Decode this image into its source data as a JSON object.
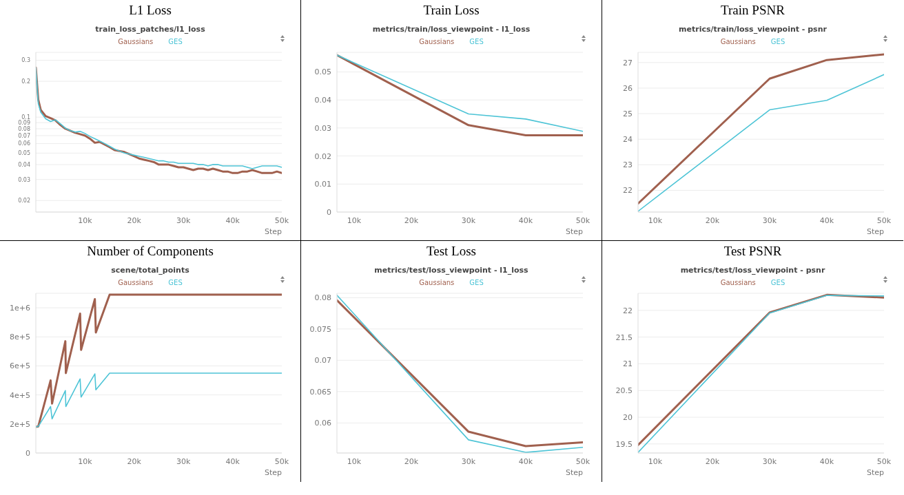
{
  "chart_data": [
    {
      "type": "line",
      "title": "L1 Loss",
      "subtitle": "train_loss_patches/l1_loss",
      "xlabel": "Step",
      "log": true,
      "grid": "y",
      "legend": "top",
      "xlim": [
        0,
        50000
      ],
      "xticks": [
        {
          "value": 10000,
          "label": "10k"
        },
        {
          "value": 20000,
          "label": "20k"
        },
        {
          "value": 30000,
          "label": "30k"
        },
        {
          "value": 40000,
          "label": "40k"
        },
        {
          "value": 50000,
          "label": "50k"
        }
      ],
      "ylim": [
        0.016,
        0.35
      ],
      "yticks": [
        0.02,
        0.03,
        0.04,
        0.05,
        0.06,
        0.07,
        0.08,
        0.09,
        0.1,
        0.2,
        0.3
      ],
      "series": [
        {
          "name": "Gaussians",
          "color": "#a0604e",
          "x": [
            0,
            500,
            1000,
            2000,
            3000,
            4000,
            5000,
            6000,
            7000,
            8000,
            9000,
            10000,
            11000,
            12000,
            13000,
            14000,
            15000,
            16000,
            17000,
            18000,
            19000,
            20000,
            21000,
            22000,
            23000,
            24000,
            25000,
            26000,
            27000,
            28000,
            29000,
            30000,
            31000,
            32000,
            33000,
            34000,
            35000,
            36000,
            37000,
            38000,
            39000,
            40000,
            41000,
            42000,
            43000,
            44000,
            45000,
            46000,
            47000,
            48000,
            49000,
            50000
          ],
          "values": [
            0.26,
            0.14,
            0.115,
            0.102,
            0.098,
            0.094,
            0.086,
            0.08,
            0.077,
            0.074,
            0.072,
            0.07,
            0.066,
            0.061,
            0.062,
            0.059,
            0.056,
            0.053,
            0.052,
            0.051,
            0.049,
            0.047,
            0.045,
            0.044,
            0.043,
            0.042,
            0.04,
            0.04,
            0.04,
            0.039,
            0.038,
            0.038,
            0.037,
            0.036,
            0.037,
            0.037,
            0.036,
            0.037,
            0.036,
            0.035,
            0.035,
            0.034,
            0.034,
            0.035,
            0.035,
            0.036,
            0.035,
            0.034,
            0.034,
            0.034,
            0.035,
            0.034
          ]
        },
        {
          "name": "GES",
          "color": "#4dc4d6",
          "x": [
            0,
            500,
            1000,
            2000,
            3000,
            4000,
            5000,
            6000,
            7000,
            8000,
            9000,
            10000,
            11000,
            12000,
            13000,
            14000,
            15000,
            16000,
            17000,
            18000,
            19000,
            20000,
            21000,
            22000,
            23000,
            24000,
            25000,
            26000,
            27000,
            28000,
            29000,
            30000,
            31000,
            32000,
            33000,
            34000,
            35000,
            36000,
            37000,
            38000,
            39000,
            40000,
            41000,
            42000,
            43000,
            44000,
            45000,
            46000,
            47000,
            48000,
            49000,
            50000
          ],
          "values": [
            0.26,
            0.13,
            0.11,
            0.097,
            0.092,
            0.095,
            0.088,
            0.081,
            0.077,
            0.075,
            0.076,
            0.073,
            0.069,
            0.066,
            0.063,
            0.06,
            0.057,
            0.054,
            0.052,
            0.05,
            0.049,
            0.048,
            0.047,
            0.046,
            0.045,
            0.044,
            0.043,
            0.043,
            0.042,
            0.042,
            0.041,
            0.041,
            0.041,
            0.041,
            0.04,
            0.04,
            0.039,
            0.04,
            0.04,
            0.039,
            0.039,
            0.039,
            0.039,
            0.039,
            0.038,
            0.037,
            0.038,
            0.039,
            0.039,
            0.039,
            0.039,
            0.038
          ]
        }
      ]
    },
    {
      "type": "line",
      "title": "Train Loss",
      "subtitle": "metrics/train/loss_viewpoint - l1_loss",
      "xlabel": "Step",
      "grid": "y",
      "legend": "top",
      "xlim": [
        7000,
        50000
      ],
      "xticks": [
        {
          "value": 10000,
          "label": "10k"
        },
        {
          "value": 20000,
          "label": "20k"
        },
        {
          "value": 30000,
          "label": "30k"
        },
        {
          "value": 40000,
          "label": "40k"
        },
        {
          "value": 50000,
          "label": "50k"
        }
      ],
      "ylim": [
        0,
        0.057
      ],
      "yticks": [
        0,
        0.01,
        0.02,
        0.03,
        0.04,
        0.05
      ],
      "series": [
        {
          "name": "Gaussians",
          "color": "#a0604e",
          "x": [
            7000,
            30000,
            40000,
            50000
          ],
          "values": [
            0.056,
            0.031,
            0.0274,
            0.0274
          ]
        },
        {
          "name": "GES",
          "color": "#4dc4d6",
          "x": [
            7000,
            30000,
            40000,
            50000
          ],
          "values": [
            0.056,
            0.035,
            0.0332,
            0.0288
          ]
        }
      ]
    },
    {
      "type": "line",
      "title": "Train PSNR",
      "subtitle": "metrics/train/loss_viewpoint - psnr",
      "xlabel": "Step",
      "grid": "y",
      "legend": "top",
      "xlim": [
        7000,
        50000
      ],
      "xticks": [
        {
          "value": 10000,
          "label": "10k"
        },
        {
          "value": 20000,
          "label": "20k"
        },
        {
          "value": 30000,
          "label": "30k"
        },
        {
          "value": 40000,
          "label": "40k"
        },
        {
          "value": 50000,
          "label": "50k"
        }
      ],
      "ylim": [
        21.15,
        27.4
      ],
      "yticks": [
        22,
        23,
        24,
        25,
        26,
        27
      ],
      "series": [
        {
          "name": "Gaussians",
          "color": "#a0604e",
          "x": [
            7000,
            30000,
            40000,
            50000
          ],
          "values": [
            21.48,
            26.37,
            27.1,
            27.32
          ]
        },
        {
          "name": "GES",
          "color": "#4dc4d6",
          "x": [
            7000,
            30000,
            40000,
            50000
          ],
          "values": [
            21.18,
            25.15,
            25.52,
            26.53
          ]
        }
      ]
    },
    {
      "type": "line",
      "title": "Number of Components",
      "subtitle": "scene/total_points",
      "xlabel": "Step",
      "grid": "y",
      "legend": "top",
      "xlim": [
        0,
        50000
      ],
      "xticks": [
        {
          "value": 10000,
          "label": "10k"
        },
        {
          "value": 20000,
          "label": "20k"
        },
        {
          "value": 30000,
          "label": "30k"
        },
        {
          "value": 40000,
          "label": "40k"
        },
        {
          "value": 50000,
          "label": "50k"
        }
      ],
      "ylim": [
        0,
        1100000
      ],
      "yticks": [
        0,
        {
          "value": 200000,
          "label": "2e+5"
        },
        {
          "value": 400000,
          "label": "4e+5"
        },
        {
          "value": 600000,
          "label": "6e+5"
        },
        {
          "value": 800000,
          "label": "8e+5"
        },
        {
          "value": 1000000,
          "label": "1e+6"
        }
      ],
      "series": [
        {
          "name": "Gaussians",
          "color": "#a0604e",
          "x": [
            0,
            500,
            3000,
            3300,
            6000,
            6100,
            9000,
            9200,
            12000,
            12200,
            15000,
            50000
          ],
          "values": [
            180000,
            183000,
            500000,
            340000,
            770000,
            550000,
            960000,
            710000,
            1060000,
            830000,
            1090000,
            1090000
          ]
        },
        {
          "name": "GES",
          "color": "#4dc4d6",
          "x": [
            0,
            500,
            3000,
            3300,
            6000,
            6100,
            9000,
            9200,
            12000,
            12200,
            15000,
            50000
          ],
          "values": [
            180000,
            183000,
            320000,
            235000,
            430000,
            320000,
            510000,
            385000,
            545000,
            435000,
            550000,
            550000
          ]
        }
      ]
    },
    {
      "type": "line",
      "title": "Test Loss",
      "subtitle": "metrics/test/loss_viewpoint - l1_loss",
      "xlabel": "Step",
      "grid": "y",
      "legend": "top",
      "xlim": [
        7000,
        50000
      ],
      "xticks": [
        {
          "value": 10000,
          "label": "10k"
        },
        {
          "value": 20000,
          "label": "20k"
        },
        {
          "value": 30000,
          "label": "30k"
        },
        {
          "value": 40000,
          "label": "40k"
        },
        {
          "value": 50000,
          "label": "50k"
        }
      ],
      "ylim": [
        0.0552,
        0.0807
      ],
      "yticks": [
        0.06,
        0.065,
        0.07,
        0.075,
        0.08
      ],
      "series": [
        {
          "name": "Gaussians",
          "color": "#a0604e",
          "x": [
            7000,
            30000,
            40000,
            50000
          ],
          "values": [
            0.0796,
            0.0586,
            0.0563,
            0.0569
          ]
        },
        {
          "name": "GES",
          "color": "#4dc4d6",
          "x": [
            7000,
            30000,
            40000,
            50000
          ],
          "values": [
            0.0804,
            0.0573,
            0.0553,
            0.0561
          ]
        }
      ]
    },
    {
      "type": "line",
      "title": "Test PSNR",
      "subtitle": "metrics/test/loss_viewpoint - psnr",
      "xlabel": "Step",
      "grid": "y",
      "legend": "top",
      "xlim": [
        7000,
        50000
      ],
      "xticks": [
        {
          "value": 10000,
          "label": "10k"
        },
        {
          "value": 20000,
          "label": "20k"
        },
        {
          "value": 30000,
          "label": "30k"
        },
        {
          "value": 40000,
          "label": "40k"
        },
        {
          "value": 50000,
          "label": "50k"
        }
      ],
      "ylim": [
        19.33,
        22.32
      ],
      "yticks": [
        19.5,
        20,
        20.5,
        21,
        21.5,
        22
      ],
      "series": [
        {
          "name": "Gaussians",
          "color": "#a0604e",
          "x": [
            7000,
            30000,
            40000,
            50000
          ],
          "values": [
            19.48,
            21.96,
            22.29,
            22.24
          ]
        },
        {
          "name": "GES",
          "color": "#4dc4d6",
          "x": [
            7000,
            30000,
            40000,
            50000
          ],
          "values": [
            19.34,
            21.95,
            22.28,
            22.27
          ]
        }
      ]
    }
  ]
}
